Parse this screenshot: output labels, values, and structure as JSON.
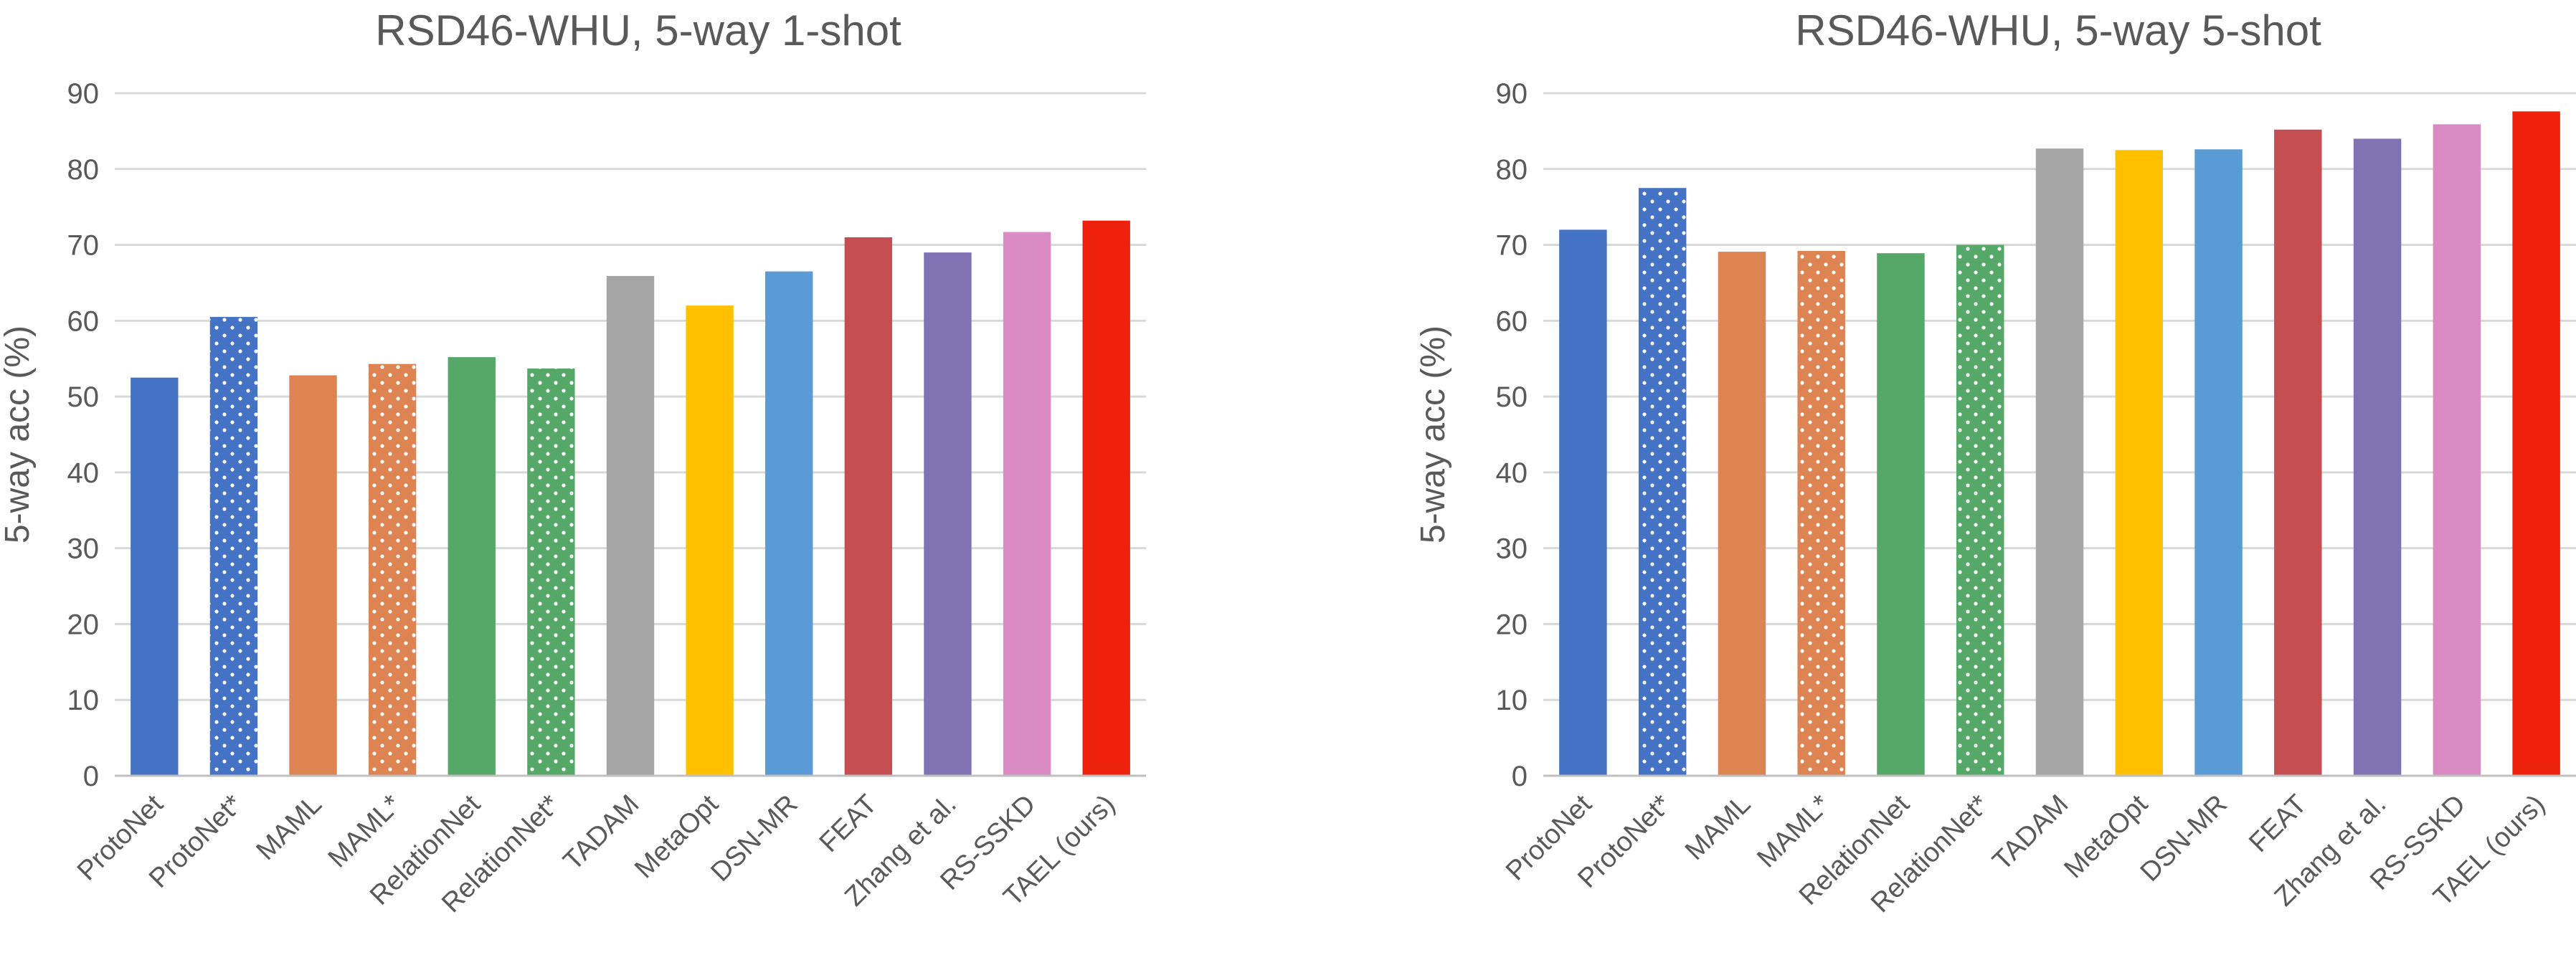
{
  "chart_data": [
    {
      "type": "bar",
      "title": "RSD46-WHU, 5-way 1-shot",
      "xlabel": "",
      "ylabel": "5-way acc (%)",
      "ylim": [
        0,
        90
      ],
      "yticks": [
        0,
        10,
        20,
        30,
        40,
        50,
        60,
        70,
        80,
        90
      ],
      "grid": true,
      "categories": [
        "ProtoNet",
        "ProtoNet*",
        "MAML",
        "MAML*",
        "RelationNet",
        "RelationNet*",
        "TADAM",
        "MetaOpt",
        "DSN-MR",
        "FEAT",
        "Zhang et al.",
        "RS-SSKD",
        "TAEL (ours)"
      ],
      "values": [
        52.5,
        60.5,
        52.8,
        54.3,
        55.2,
        53.7,
        65.9,
        62.0,
        66.5,
        71.0,
        69.0,
        71.7,
        73.2
      ]
    },
    {
      "type": "bar",
      "title": "RSD46-WHU, 5-way 5-shot",
      "xlabel": "",
      "ylabel": "5-way acc (%)",
      "ylim": [
        0,
        90
      ],
      "yticks": [
        0,
        10,
        20,
        30,
        40,
        50,
        60,
        70,
        80,
        90
      ],
      "grid": true,
      "categories": [
        "ProtoNet",
        "ProtoNet*",
        "MAML",
        "MAML*",
        "RelationNet",
        "RelationNet*",
        "TADAM",
        "MetaOpt",
        "DSN-MR",
        "FEAT",
        "Zhang et al.",
        "RS-SSKD",
        "TAEL (ours)"
      ],
      "values": [
        72.0,
        77.5,
        69.1,
        69.2,
        68.9,
        70.0,
        82.7,
        82.5,
        82.6,
        85.2,
        84.0,
        85.9,
        87.6
      ]
    }
  ],
  "bar_colors": [
    "#4472C4",
    "#4472C4",
    "#DD8452",
    "#DD8452",
    "#55A868",
    "#55A868",
    "#A5A5A5",
    "#FFC000",
    "#5B9BD5",
    "#C44E52",
    "#8172B3",
    "#DA8BC3",
    "#EE220C"
  ],
  "dotted": [
    false,
    true,
    false,
    true,
    false,
    true,
    false,
    false,
    false,
    false,
    false,
    false,
    false
  ],
  "gridline_color": "#D9D9D9"
}
